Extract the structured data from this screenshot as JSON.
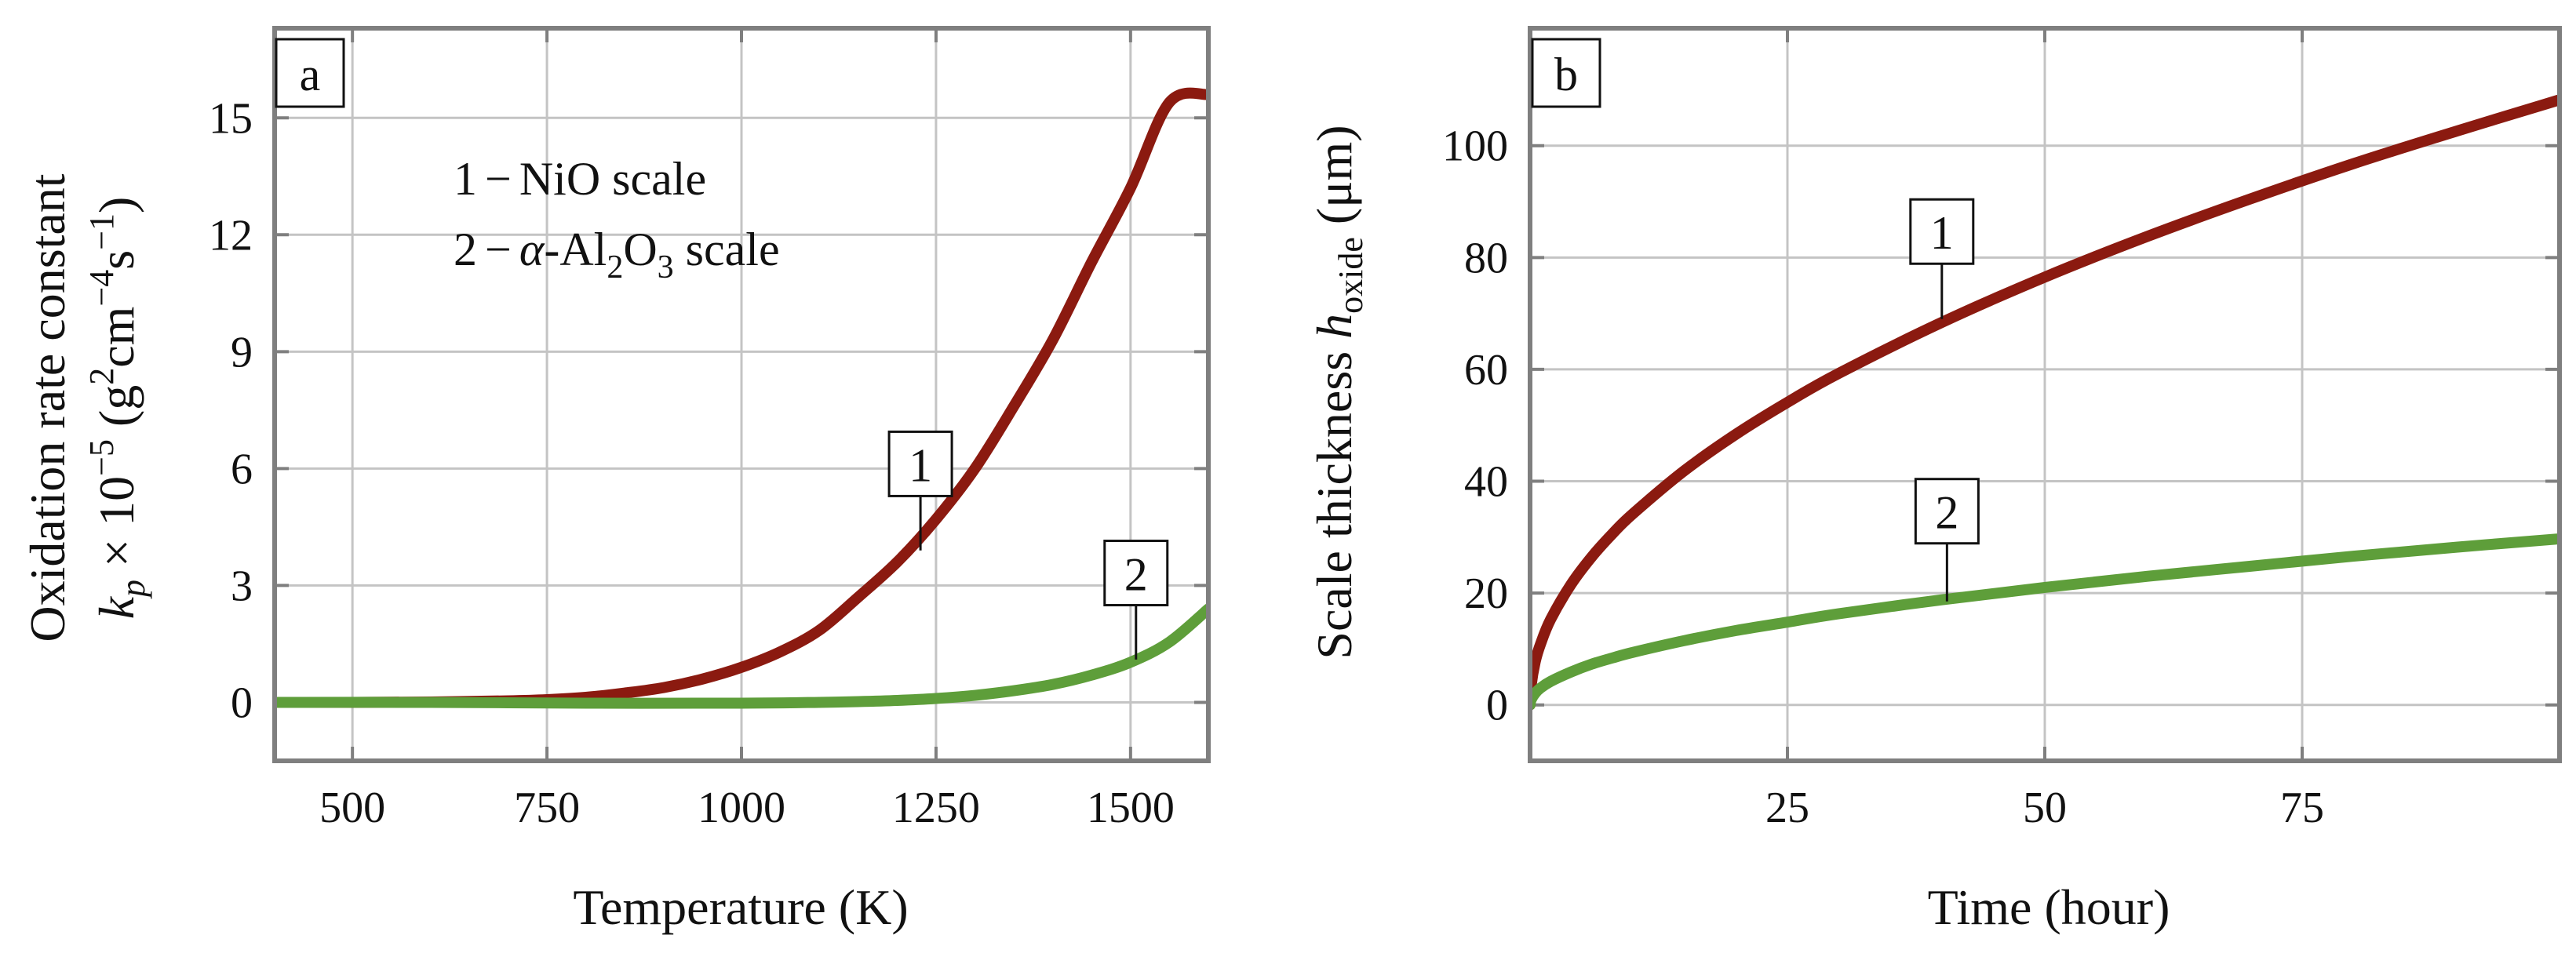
{
  "figure": {
    "background": "#ffffff",
    "frame_color": "#7f7f7f",
    "grid_color": "#c4c4c4"
  },
  "chart_data": [
    {
      "type": "line",
      "panel_label": "a",
      "title": "",
      "xlabel": "Temperature (K)",
      "ylabel": {
        "line1": "Oxidation rate constant",
        "k": "k",
        "k_sub": "p",
        "times": " × 10",
        "exp": "−5",
        "unit_open": " (g",
        "sup2": "2",
        "cm": "cm",
        "sup_m4": "−4",
        "s": "s",
        "sup_m1": "−1",
        "unit_close": ")"
      },
      "xlim": [
        400,
        1600
      ],
      "ylim": [
        -1.5,
        17.3
      ],
      "xticks": [
        500,
        750,
        1000,
        1250,
        1500
      ],
      "xtick_labels": [
        "500",
        "750",
        "1000",
        "1250",
        "1500"
      ],
      "yticks": [
        0,
        3,
        6,
        9,
        12,
        15
      ],
      "ytick_labels": [
        "0",
        "3",
        "6",
        "9",
        "12",
        "15"
      ],
      "grid": true,
      "legend": {
        "placement": "top-left",
        "items": [
          {
            "parts": [
              "1",
              "−",
              "NiO scale"
            ]
          },
          {
            "parts": [
              "2",
              "−",
              "α",
              "-Al",
              "2",
              "O",
              "3",
              " scale"
            ]
          }
        ]
      },
      "series": [
        {
          "name": "1",
          "color": "#8b1a10",
          "x": [
            400,
            500,
            600,
            700,
            750,
            800,
            850,
            900,
            950,
            1000,
            1050,
            1100,
            1150,
            1200,
            1250,
            1300,
            1350,
            1400,
            1450,
            1500,
            1550,
            1600
          ],
          "y": [
            0,
            0,
            0.01,
            0.04,
            0.07,
            0.13,
            0.24,
            0.38,
            0.6,
            0.9,
            1.3,
            1.85,
            2.7,
            3.6,
            4.7,
            6.0,
            7.6,
            9.3,
            11.3,
            13.2,
            15.4,
            15.6
          ]
        },
        {
          "name": "2",
          "color": "#5e9e3a",
          "x": [
            400,
            600,
            800,
            1000,
            1100,
            1150,
            1200,
            1250,
            1300,
            1350,
            1400,
            1450,
            1500,
            1550,
            1600
          ],
          "y": [
            0,
            0,
            -0.02,
            -0.02,
            0,
            0.02,
            0.05,
            0.1,
            0.18,
            0.3,
            0.46,
            0.7,
            1.03,
            1.55,
            2.4
          ]
        }
      ],
      "annotations": [
        {
          "label": "1",
          "x": 1230,
          "y": 3.9,
          "text_x": 1230,
          "text_y": 6.1
        },
        {
          "label": "2",
          "x": 1507,
          "y": 1.1,
          "text_x": 1507,
          "text_y": 3.3
        }
      ]
    },
    {
      "type": "line",
      "panel_label": "b",
      "title": "",
      "xlabel": "Time (hour)",
      "ylabel": {
        "main": "Scale thickness ",
        "h": "h",
        "h_sub": "oxide",
        "unit": " (μm)"
      },
      "xlim": [
        0,
        100
      ],
      "ylim": [
        -10,
        121
      ],
      "xticks": [
        25,
        50,
        75
      ],
      "xtick_labels": [
        "25",
        "50",
        "75"
      ],
      "yticks": [
        0,
        20,
        40,
        60,
        80,
        100
      ],
      "ytick_labels": [
        "0",
        "20",
        "40",
        "60",
        "80",
        "100"
      ],
      "grid": true,
      "series": [
        {
          "name": "1",
          "color": "#8b1a10",
          "x": [
            0,
            0.1,
            0.5,
            1,
            2,
            4,
            6,
            8,
            10,
            15,
            20,
            25,
            30,
            40,
            50,
            60,
            70,
            80,
            90,
            100
          ],
          "y": [
            0,
            3.4,
            7.7,
            10.8,
            15.3,
            21.6,
            26.5,
            30.6,
            34.2,
            41.9,
            48.4,
            54.1,
            59.3,
            68.4,
            76.5,
            83.8,
            90.5,
            96.8,
            102.6,
            108.2
          ]
        },
        {
          "name": "2",
          "color": "#5e9e3a",
          "x": [
            0,
            0.1,
            0.5,
            1,
            2,
            4,
            6,
            8,
            10,
            15,
            20,
            25,
            30,
            40,
            50,
            60,
            70,
            80,
            90,
            100
          ],
          "y": [
            0,
            0.9,
            2.1,
            3.0,
            4.2,
            5.9,
            7.3,
            8.4,
            9.4,
            11.5,
            13.3,
            14.8,
            16.3,
            18.8,
            21.0,
            23.0,
            24.8,
            26.6,
            28.2,
            29.7
          ]
        }
      ],
      "annotations": [
        {
          "label": "1",
          "x": 40,
          "y": 69,
          "text_x": 40,
          "text_y": 84.5
        },
        {
          "label": "2",
          "x": 40.5,
          "y": 18.5,
          "text_x": 40.5,
          "text_y": 34.5
        }
      ]
    }
  ]
}
